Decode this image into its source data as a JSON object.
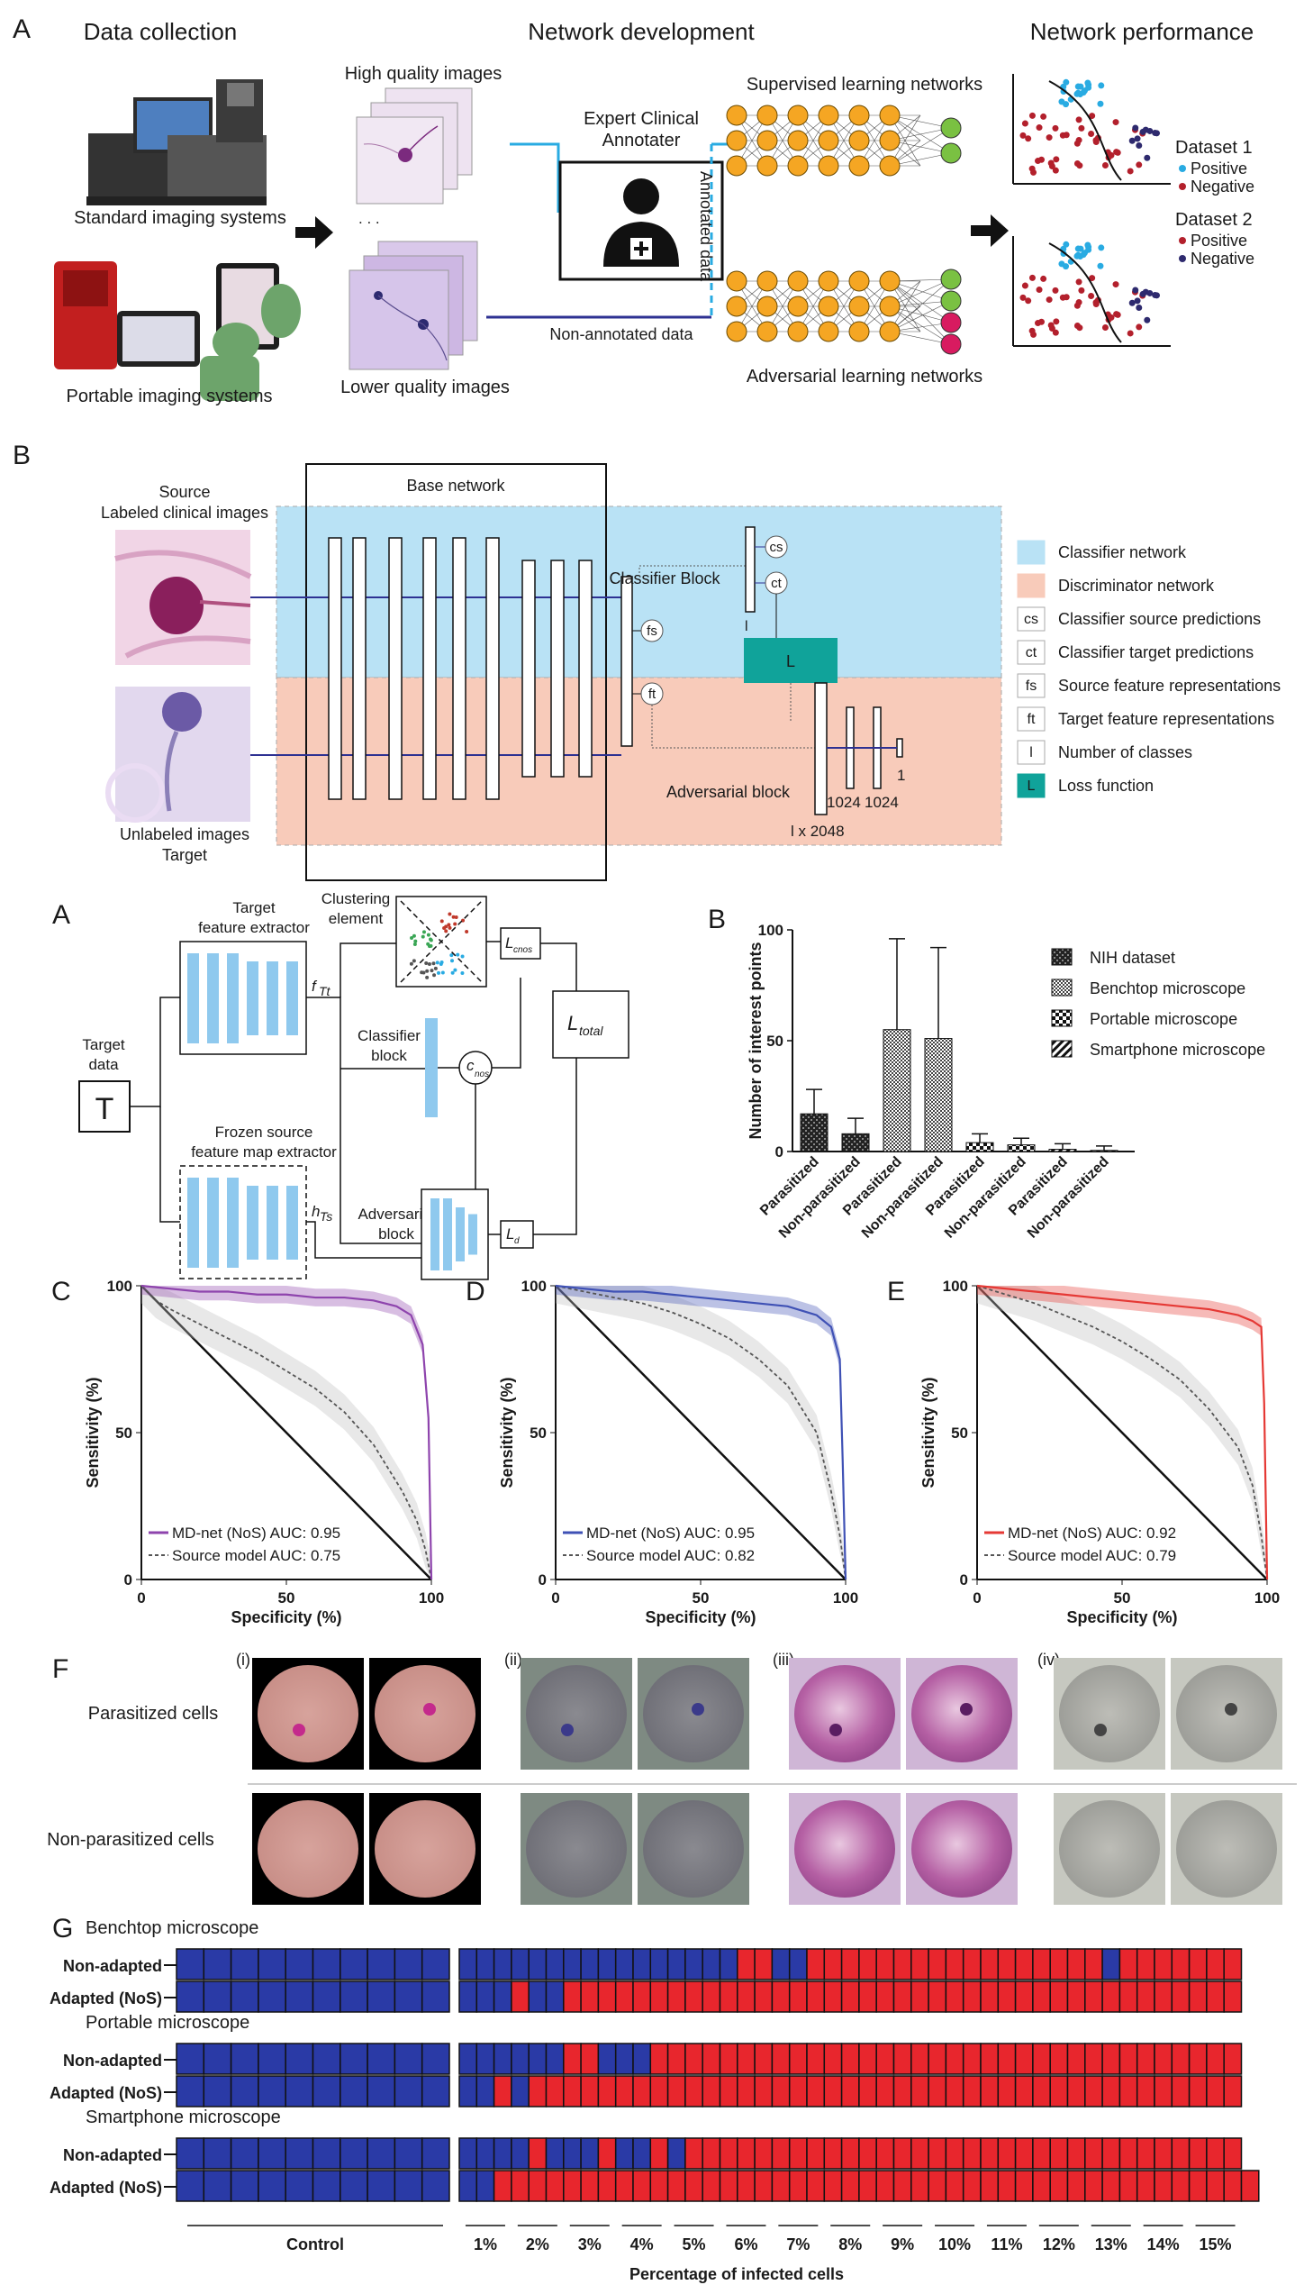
{
  "colors": {
    "classifier_bg": "#b9e2f5",
    "discriminator_bg": "#f8cbba",
    "loss_fill": "#10a39a",
    "node_orange": "#f5a623",
    "node_green": "#7ac142",
    "node_pink": "#d81b60",
    "cyan_line": "#29abe2",
    "navy_line": "#2e3192",
    "roc_purple": "#8e44ad",
    "roc_blue": "#3f51b5",
    "roc_red": "#e53935",
    "grid_blue": "#2a3aa6",
    "grid_red": "#e8262d",
    "light_blue": "#8fc9ee"
  },
  "panelA": {
    "letter": "A",
    "col1_title": "Data collection",
    "col2_title": "Network development",
    "col3_title": "Network performance",
    "standard_label": "Standard imaging systems",
    "portable_label": "Portable imaging systems",
    "hq_label": "High quality images",
    "lq_label": "Lower quality images",
    "annotator_label": [
      "Expert Clinical",
      "Annotater"
    ],
    "annotated_label": "Annotated data",
    "nonannotated_label": "Non-annotated data",
    "supervised_label": "Supervised learning networks",
    "adversarial_label": "Adversarial learning networks",
    "dataset1": "Dataset 1",
    "dataset2": "Dataset 2",
    "positive": "Positive",
    "negative": "Negative"
  },
  "panelB": {
    "letter": "B",
    "source_label": [
      "Source",
      "Labeled clinical images"
    ],
    "target_label": [
      "Unlabeled images",
      "Target"
    ],
    "base_network": "Base network",
    "classifier_block": "Classifier Block",
    "adversarial_block": "Adversarial block",
    "loss_symbol": "L",
    "fs": "fs",
    "ft": "ft",
    "cs": "cs",
    "ct": "ct",
    "dims": [
      "l x 2048",
      "1024",
      "1024",
      "1"
    ],
    "legend": [
      {
        "key": "",
        "text": "Classifier network",
        "swatch": "blue"
      },
      {
        "key": "",
        "text": "Discriminator network",
        "swatch": "salmon"
      },
      {
        "key": "cs",
        "text": "Classifier source predictions",
        "swatch": "box"
      },
      {
        "key": "ct",
        "text": "Classifier target predictions",
        "swatch": "box"
      },
      {
        "key": "fs",
        "text": "Source feature representations",
        "swatch": "box"
      },
      {
        "key": "ft",
        "text": "Target feature representations",
        "swatch": "box"
      },
      {
        "key": "l",
        "text": "Number of classes",
        "swatch": "box"
      },
      {
        "key": "L",
        "text": "Loss function",
        "swatch": "teal"
      }
    ]
  },
  "panelA2": {
    "letter": "A",
    "target_fx": [
      "Target",
      "feature extractor"
    ],
    "clustering": [
      "Clustering",
      "element"
    ],
    "classifier": [
      "Classifier",
      "block"
    ],
    "frozen": [
      "Frozen source",
      "feature map extractor"
    ],
    "adversarial": [
      "Adversarial",
      "block"
    ],
    "target_data": [
      "Target",
      "data"
    ],
    "T": "T",
    "fTt": "f",
    "fTt_sub": "Tt",
    "hTs": "h",
    "hTs_sub": "Ts",
    "cnos": "c",
    "cnos_sub": "nos",
    "Lcnos": "L",
    "Lcnos_sub": "cnos",
    "Ltotal": "L",
    "Ltotal_sub": "total",
    "Ld": "L",
    "Ld_sub": "d"
  },
  "chart_data": [
    {
      "panel": "B",
      "type": "bar",
      "ylabel": "Number of interest points",
      "ylim": [
        0,
        100
      ],
      "yticks": [
        0,
        50,
        100
      ],
      "categories": [
        "Parasitized",
        "Non-parasitized",
        "Parasitized",
        "Non-parasitized",
        "Parasitized",
        "Non-parasitized",
        "Parasitized",
        "Non-parasitized"
      ],
      "values": [
        17,
        8,
        55,
        51,
        4,
        3,
        1,
        0.5
      ],
      "errors": [
        11,
        7,
        41,
        41,
        4,
        3,
        2.5,
        2
      ],
      "groups": [
        0,
        0,
        1,
        1,
        2,
        2,
        3,
        3
      ],
      "legend": [
        "NIH dataset",
        "Benchtop microscope",
        "Portable microscope",
        "Smartphone microscope"
      ]
    },
    {
      "panel": "C",
      "type": "line",
      "xlabel": "Specificity (%)",
      "ylabel": "Sensitivity (%)",
      "xlim": [
        0,
        100
      ],
      "ylim": [
        0,
        100
      ],
      "ticks": [
        0,
        50,
        100
      ],
      "series": [
        {
          "name": "MD-net (NoS) AUC: 0.95",
          "x": [
            0,
            10,
            20,
            30,
            40,
            50,
            60,
            70,
            80,
            88,
            93,
            97,
            99,
            100
          ],
          "y": [
            100,
            99,
            98,
            98,
            97,
            97,
            96,
            96,
            95,
            93,
            90,
            80,
            55,
            0
          ]
        },
        {
          "name": "Source model AUC: 0.75",
          "x": [
            0,
            5,
            10,
            20,
            30,
            40,
            50,
            60,
            70,
            80,
            90,
            95,
            98,
            100
          ],
          "y": [
            100,
            95,
            92,
            87,
            82,
            77,
            71,
            65,
            57,
            46,
            30,
            20,
            10,
            0
          ]
        }
      ]
    },
    {
      "panel": "D",
      "type": "line",
      "xlabel": "Specificity (%)",
      "ylabel": "Sensitivity (%)",
      "xlim": [
        0,
        100
      ],
      "ylim": [
        0,
        100
      ],
      "ticks": [
        0,
        50,
        100
      ],
      "series": [
        {
          "name": "MD-net (NoS) AUC: 0.95",
          "x": [
            0,
            10,
            20,
            30,
            40,
            50,
            60,
            70,
            80,
            90,
            95,
            98,
            99,
            100
          ],
          "y": [
            100,
            99,
            98,
            98,
            97,
            96,
            95,
            94,
            93,
            90,
            86,
            75,
            40,
            0
          ]
        },
        {
          "name": "Source model AUC: 0.82",
          "x": [
            0,
            10,
            20,
            30,
            40,
            50,
            60,
            70,
            80,
            90,
            95,
            98,
            100
          ],
          "y": [
            100,
            98,
            96,
            94,
            91,
            87,
            82,
            75,
            66,
            50,
            30,
            15,
            0
          ]
        }
      ]
    },
    {
      "panel": "E",
      "type": "line",
      "xlabel": "Specificity (%)",
      "ylabel": "Sensitivity (%)",
      "xlim": [
        0,
        100
      ],
      "ylim": [
        0,
        100
      ],
      "ticks": [
        0,
        50,
        100
      ],
      "series": [
        {
          "name": "MD-net (NoS) AUC: 0.92",
          "x": [
            0,
            10,
            20,
            30,
            40,
            50,
            60,
            70,
            80,
            90,
            95,
            98,
            99,
            100
          ],
          "y": [
            100,
            99,
            98,
            97,
            96,
            95,
            94,
            93,
            92,
            90,
            88,
            86,
            60,
            0
          ]
        },
        {
          "name": "Source model AUC: 0.79",
          "x": [
            0,
            10,
            20,
            30,
            40,
            50,
            60,
            70,
            80,
            90,
            95,
            98,
            100
          ],
          "y": [
            100,
            97,
            94,
            90,
            86,
            81,
            75,
            68,
            58,
            45,
            32,
            15,
            0
          ]
        }
      ]
    }
  ],
  "panelF": {
    "letter": "F",
    "row1": "Parasitized cells",
    "row2": "Non-parasitized cells",
    "sub": [
      "(i)",
      "(ii)",
      "(iii)",
      "(iv)"
    ]
  },
  "panelG": {
    "letter": "G",
    "xlabel": "Percentage of infected cells",
    "control": "Control",
    "pct_labels": [
      "1%",
      "2%",
      "3%",
      "4%",
      "5%",
      "6%",
      "7%",
      "8%",
      "9%",
      "10%",
      "11%",
      "12%",
      "13%",
      "14%",
      "15%"
    ],
    "groups": [
      {
        "title": "Benchtop microscope",
        "rows": [
          {
            "label": "Non-adapted",
            "control": "BBBBBBBBBB",
            "cells": "BBBBBBBBBBBBBBBBRRBBRRRRRRRRRRRRRRRRRBRRRRRRR"
          },
          {
            "label": "Adapted (NoS)",
            "control": "BBBBBBBBBB",
            "cells": "BBBRBBRRRRRRRRRRRRRRRRRRRRRRRRRRRRRRRRRRRRRRR"
          }
        ]
      },
      {
        "title": "Portable microscope",
        "rows": [
          {
            "label": "Non-adapted",
            "control": "BBBBBBBBBB",
            "cells": "BBBBBBRRBBBRRRRRRRRRRRRRRRRRRRRRRRRRRRRRRRRRR"
          },
          {
            "label": "Adapted (NoS)",
            "control": "BBBBBBBBBB",
            "cells": "BBRBRRRRRRRRRRRRRRRRRRRRRRRRRRRRRRRRRRRRRRRRR"
          }
        ]
      },
      {
        "title": "Smartphone microscope",
        "rows": [
          {
            "label": "Non-adapted",
            "control": "BBBBBBBBBB",
            "cells": "BBBBRBBBRBBRBRRRRRRRRRRRRRRRRRRRRRRRRRRRRRRRR"
          },
          {
            "label": "Adapted (NoS)",
            "control": "BBBBBBBBBB",
            "cells": "BBRRRRRRRRRRRRRRRRRRRRRRRRRRRRRRRRRRRRRRRRRRRR"
          }
        ]
      }
    ]
  }
}
